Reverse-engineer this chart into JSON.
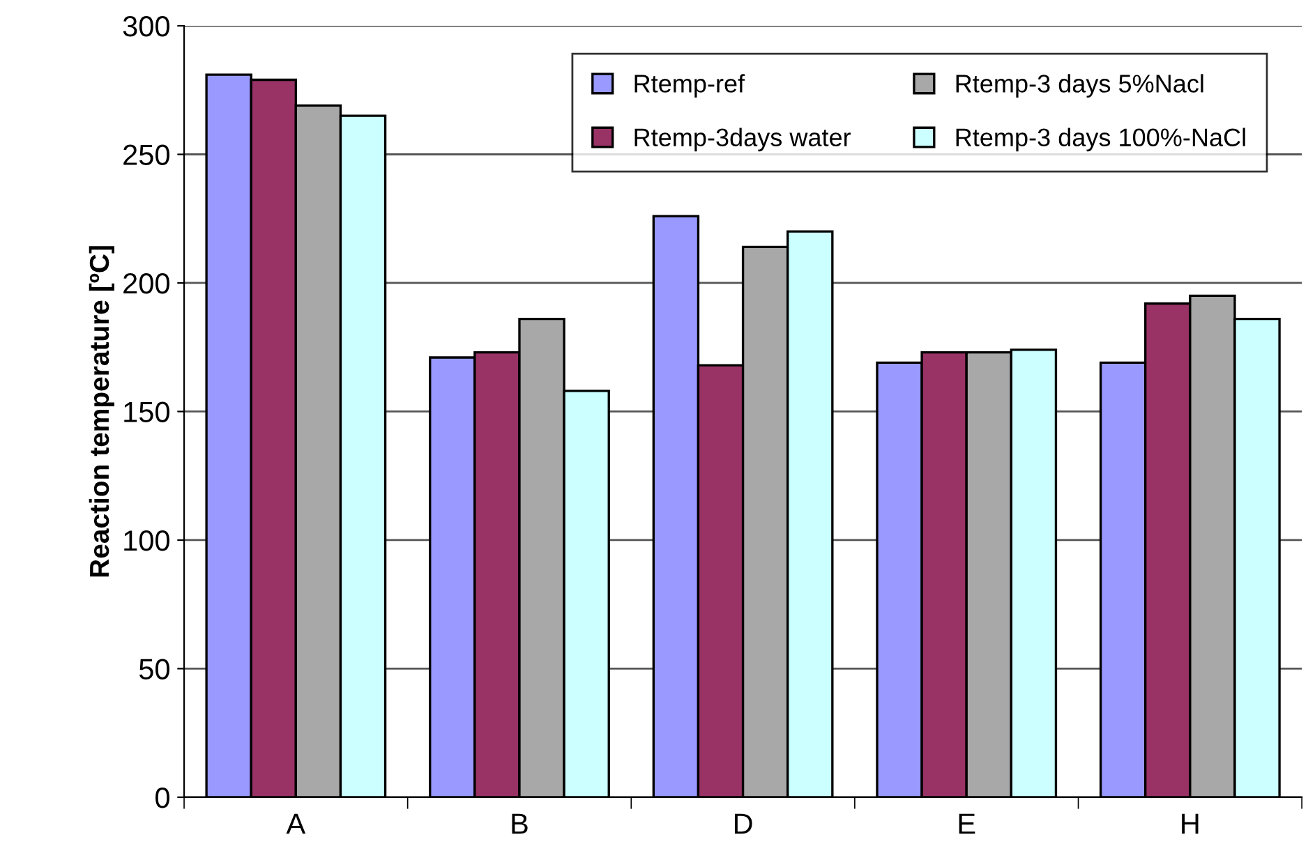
{
  "chart_data": {
    "type": "bar",
    "ylabel": "Reaction temperature [ºC]",
    "categories": [
      "A",
      "B",
      "D",
      "E",
      "H"
    ],
    "series": [
      {
        "name": "Rtemp-ref",
        "color": "#9999ff",
        "values": [
          281,
          171,
          226,
          169,
          169
        ]
      },
      {
        "name": "Rtemp-3days water",
        "color": "#993366",
        "values": [
          279,
          173,
          168,
          173,
          192
        ]
      },
      {
        "name": "Rtemp-3 days 5%Nacl",
        "color": "#a8a8a8",
        "values": [
          269,
          186,
          214,
          173,
          195
        ]
      },
      {
        "name": "Rtemp-3 days 100%-NaCl",
        "color": "#ccffff",
        "values": [
          265,
          158,
          220,
          174,
          186
        ]
      }
    ],
    "ylim": [
      0,
      300
    ],
    "yticks": [
      0,
      50,
      100,
      150,
      200,
      250,
      300
    ],
    "grid": "y",
    "legend": "top right"
  }
}
